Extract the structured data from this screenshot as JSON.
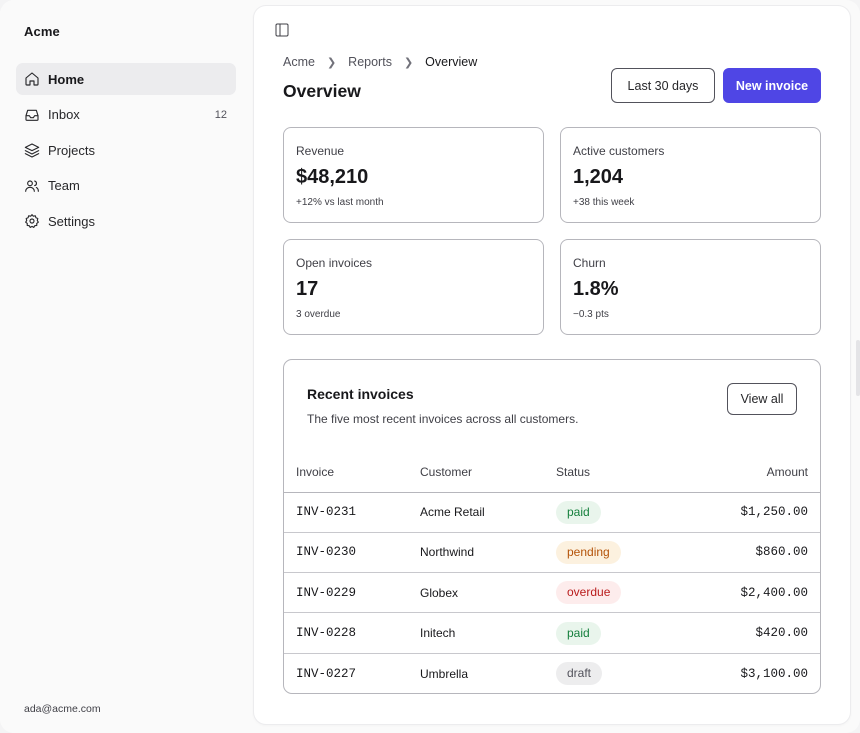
{
  "sidebar": {
    "brand": "Acme",
    "items": [
      {
        "label": "Home",
        "icon": "home-icon",
        "active": true,
        "count": ""
      },
      {
        "label": "Inbox",
        "icon": "inbox-icon",
        "active": false,
        "count": "12"
      },
      {
        "label": "Projects",
        "icon": "layers-icon",
        "active": false,
        "count": ""
      },
      {
        "label": "Team",
        "icon": "users-icon",
        "active": false,
        "count": ""
      },
      {
        "label": "Settings",
        "icon": "gear-icon",
        "active": false,
        "count": ""
      }
    ],
    "user_email": "ada@acme.com"
  },
  "header": {
    "breadcrumb": [
      "Acme",
      "Reports",
      "Overview"
    ],
    "title": "Overview",
    "range_label": "Last 30 days",
    "new_invoice_label": "New invoice"
  },
  "stats": [
    {
      "label": "Revenue",
      "value": "$48,210",
      "sub": "+12% vs last month"
    },
    {
      "label": "Active customers",
      "value": "1,204",
      "sub": "+38 this week"
    },
    {
      "label": "Open invoices",
      "value": "17",
      "sub": "3 overdue"
    },
    {
      "label": "Churn",
      "value": "1.8%",
      "sub": "−0.3 pts"
    }
  ],
  "invoices": {
    "title": "Recent invoices",
    "description": "The five most recent invoices across all customers.",
    "view_all_label": "View all",
    "columns": [
      "Invoice",
      "Customer",
      "Status",
      "Amount"
    ],
    "rows": [
      {
        "invoice": "INV-0231",
        "customer": "Acme Retail",
        "status": "paid",
        "amount": "$1,250.00"
      },
      {
        "invoice": "INV-0230",
        "customer": "Northwind",
        "status": "pending",
        "amount": "$860.00"
      },
      {
        "invoice": "INV-0229",
        "customer": "Globex",
        "status": "overdue",
        "amount": "$2,400.00"
      },
      {
        "invoice": "INV-0228",
        "customer": "Initech",
        "status": "paid",
        "amount": "$420.00"
      },
      {
        "invoice": "INV-0227",
        "customer": "Umbrella",
        "status": "draft",
        "amount": "$3,100.00"
      }
    ]
  },
  "colors": {
    "accent": "#4f46e5",
    "paid": "#15803d",
    "pending": "#b45309",
    "overdue": "#b91c1c",
    "draft": "#52525b"
  }
}
